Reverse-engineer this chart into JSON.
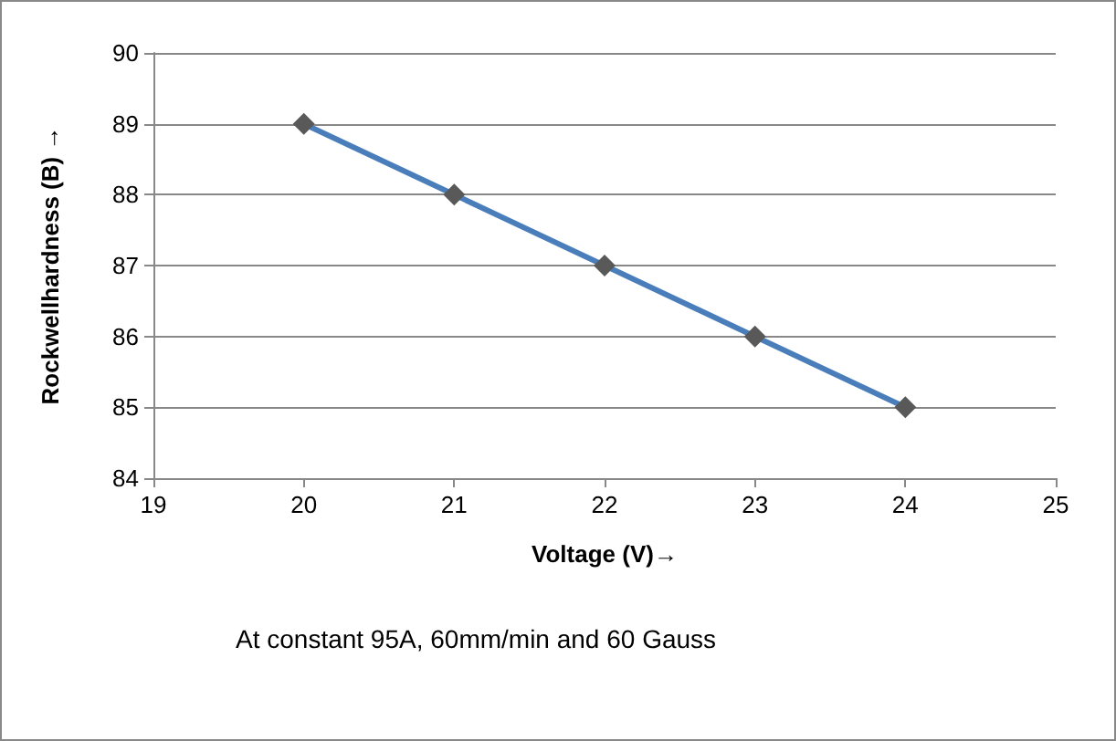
{
  "chart_data": {
    "type": "line",
    "xlabel": "Voltage (V)→",
    "ylabel": "Rockwellhardness (B) →",
    "annotations": [
      "At constant 95A, 60mm/min and 60 Gauss"
    ],
    "x": [
      20,
      21,
      22,
      23,
      24
    ],
    "series": [
      {
        "color": "#4a7ebb",
        "values": [
          89,
          88,
          87,
          86,
          85
        ]
      }
    ],
    "xlim": [
      19,
      25
    ],
    "xticks": [
      19,
      20,
      21,
      22,
      23,
      24,
      25
    ],
    "ylim": [
      84,
      90
    ],
    "yticks": [
      84,
      85,
      86,
      87,
      88,
      89,
      90
    ],
    "grid": "y",
    "marker": "diamond",
    "line_style": "solid"
  }
}
